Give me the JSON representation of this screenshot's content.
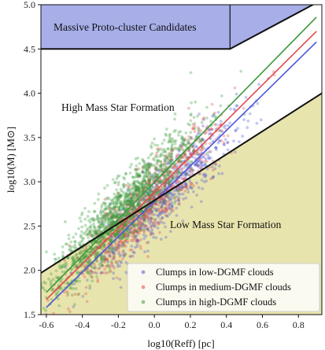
{
  "chart_data": {
    "type": "scatter",
    "xlabel": "log10(Reff) [pc]",
    "ylabel": "log10(M) [M⊙]",
    "xlim": [
      -0.63,
      0.93
    ],
    "ylim": [
      1.5,
      5.0
    ],
    "xticks": [
      -0.6,
      -0.4,
      -0.2,
      0.0,
      0.2,
      0.4,
      0.6,
      0.8
    ],
    "yticks": [
      1.5,
      2.0,
      2.5,
      3.0,
      3.5,
      4.0,
      4.5,
      5.0
    ],
    "xtick_labels": [
      "-0.6",
      "-0.4",
      "-0.2",
      "0.0",
      "0.2",
      "0.4",
      "0.6",
      "0.8"
    ],
    "ytick_labels": [
      "1.5",
      "2.0",
      "2.5",
      "3.0",
      "3.5",
      "4.0",
      "4.5",
      "5.0"
    ],
    "grid": false,
    "legend_position": "bottom-right",
    "regions": {
      "proto_cluster": {
        "label": "Massive Proto-cluster Candidates",
        "color": "#a7aee8",
        "boundary": [
          [
            -0.63,
            4.5
          ],
          [
            0.42,
            4.5
          ],
          [
            0.88,
            5.0
          ]
        ]
      },
      "high_mass": {
        "label": "High Mass Star Formation"
      },
      "low_mass": {
        "label": "Low Mass Star Formation",
        "color": "#e8e4ad",
        "boundary": [
          [
            -0.63,
            1.97
          ],
          [
            0.93,
            4.0
          ]
        ]
      }
    },
    "series": [
      {
        "name": "Clumps in low-DGMF clouds",
        "color": "#4a58d8",
        "fit_line": [
          [
            -0.6,
            1.58
          ],
          [
            0.9,
            4.58
          ]
        ],
        "center": [
          0.05,
          2.7
        ],
        "spread_x": 0.2,
        "spread_y": 0.28,
        "n_points": 700
      },
      {
        "name": "Clumps in medium-DGMF clouds",
        "color": "#e14c4c",
        "fit_line": [
          [
            -0.6,
            1.67
          ],
          [
            0.9,
            4.7
          ]
        ],
        "center": [
          -0.05,
          2.65
        ],
        "spread_x": 0.2,
        "spread_y": 0.28,
        "n_points": 900
      },
      {
        "name": "Clumps in high-DGMF clouds",
        "color": "#3c9a3c",
        "fit_line": [
          [
            -0.6,
            1.75
          ],
          [
            0.9,
            4.86
          ]
        ],
        "center": [
          -0.18,
          2.75
        ],
        "spread_x": 0.2,
        "spread_y": 0.28,
        "n_points": 1500
      }
    ]
  }
}
